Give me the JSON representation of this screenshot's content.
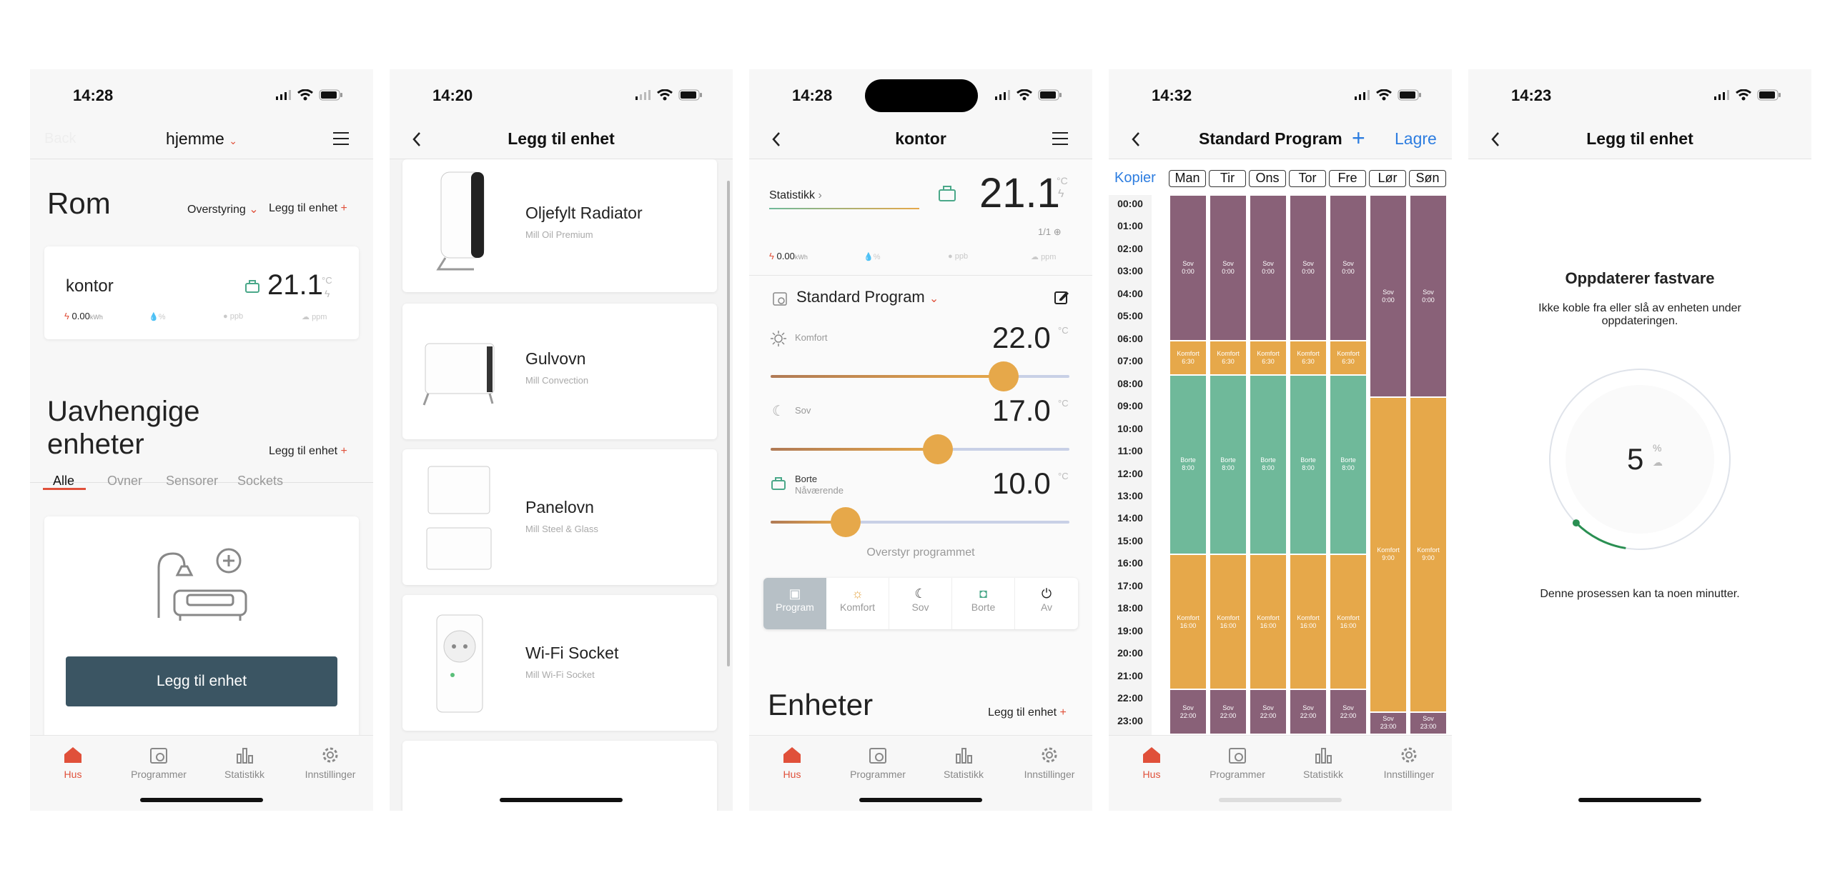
{
  "colors": {
    "accent": "#e0503a",
    "dark_button": "#3b5563",
    "komfort": "#e6a84a",
    "sov": "#896178",
    "borte": "#6fb99a",
    "blue": "#2d7de0"
  },
  "p1": {
    "time": "14:28",
    "faded_back": "Back",
    "title": "hjemme",
    "section": "Rom",
    "override": "Overstyring",
    "add_device": "Legg til enhet",
    "room": {
      "name": "kontor",
      "temp": "21.1",
      "unit": "°C",
      "energy": "0.00",
      "energy_unit": "kWh",
      "humidity": "%",
      "ppb1": "ppb",
      "ppm": "ppm"
    },
    "section2_l1": "Uavhengige",
    "section2_l2": "enheter",
    "add_device2": "Legg til enhet",
    "filters": [
      "Alle",
      "Ovner",
      "Sensorer",
      "Sockets"
    ],
    "cta": "Legg til enhet"
  },
  "tabs": [
    "Hus",
    "Programmer",
    "Statistikk",
    "Innstillinger"
  ],
  "p2": {
    "time": "14:20",
    "title": "Legg til enhet",
    "devices": [
      {
        "name": "Oljefylt Radiator",
        "sub": "Mill Oil Premium"
      },
      {
        "name": "Gulvovn",
        "sub": "Mill Convection"
      },
      {
        "name": "Panelovn",
        "sub": "Mill Steel & Glass"
      },
      {
        "name": "Wi-Fi Socket",
        "sub": "Mill Wi-Fi Socket"
      }
    ]
  },
  "p3": {
    "time": "14:28",
    "title": "kontor",
    "stats": "Statistikk",
    "temp": "21.1",
    "unit": "°C",
    "fraction": "1/1",
    "energy": "0.00",
    "energy_unit": "kWh",
    "hum": "%",
    "ppb": "ppb",
    "ppm": "ppm",
    "program": "Standard Program",
    "modes": [
      {
        "label": "Komfort",
        "value": "22.0",
        "unit": "°C",
        "level": 0.78
      },
      {
        "label": "Sov",
        "value": "17.0",
        "unit": "°C",
        "level": 0.56
      },
      {
        "label": "Borte",
        "sub": "Nåværende",
        "value": "10.0",
        "unit": "°C",
        "level": 0.25
      }
    ],
    "override": "Overstyr programmet",
    "seg": [
      "Program",
      "Komfort",
      "Sov",
      "Borte",
      "Av"
    ],
    "devices_title": "Enheter",
    "add_device": "Legg til enhet"
  },
  "p4": {
    "time": "14:32",
    "title": "Standard Program",
    "save": "Lagre",
    "copy": "Kopier",
    "days": [
      "Man",
      "Tir",
      "Ons",
      "Tor",
      "Fre",
      "Lør",
      "Søn"
    ],
    "hours": [
      "00:00",
      "01:00",
      "02:00",
      "03:00",
      "04:00",
      "05:00",
      "06:00",
      "07:00",
      "08:00",
      "09:00",
      "10:00",
      "11:00",
      "12:00",
      "13:00",
      "14:00",
      "15:00",
      "16:00",
      "17:00",
      "18:00",
      "19:00",
      "20:00",
      "21:00",
      "22:00",
      "23:00"
    ],
    "weekday": [
      {
        "mode": "sov",
        "label": "Sov",
        "time": "0:00",
        "start": 0,
        "end": 6.5
      },
      {
        "mode": "komfort",
        "label": "Komfort",
        "time": "6:30",
        "start": 6.5,
        "end": 8
      },
      {
        "mode": "borte",
        "label": "Borte",
        "time": "8:00",
        "start": 8,
        "end": 16
      },
      {
        "mode": "komfort",
        "label": "Komfort",
        "time": "16:00",
        "start": 16,
        "end": 22
      },
      {
        "mode": "sov",
        "label": "Sov",
        "time": "22:00",
        "start": 22,
        "end": 24
      }
    ],
    "weekend": [
      {
        "mode": "sov",
        "label": "Sov",
        "time": "0:00",
        "start": 0,
        "end": 9
      },
      {
        "mode": "komfort",
        "label": "Komfort",
        "time": "9:00",
        "start": 9,
        "end": 23
      },
      {
        "mode": "sov",
        "label": "Sov",
        "time": "23:00",
        "start": 23,
        "end": 24
      }
    ]
  },
  "p5": {
    "time": "14:23",
    "title": "Legg til enhet",
    "heading": "Oppdaterer fastvare",
    "text": "Ikke koble fra eller slå av enheten under oppdateringen.",
    "progress": "5",
    "unit": "%",
    "note": "Denne prosessen kan ta noen minutter."
  }
}
